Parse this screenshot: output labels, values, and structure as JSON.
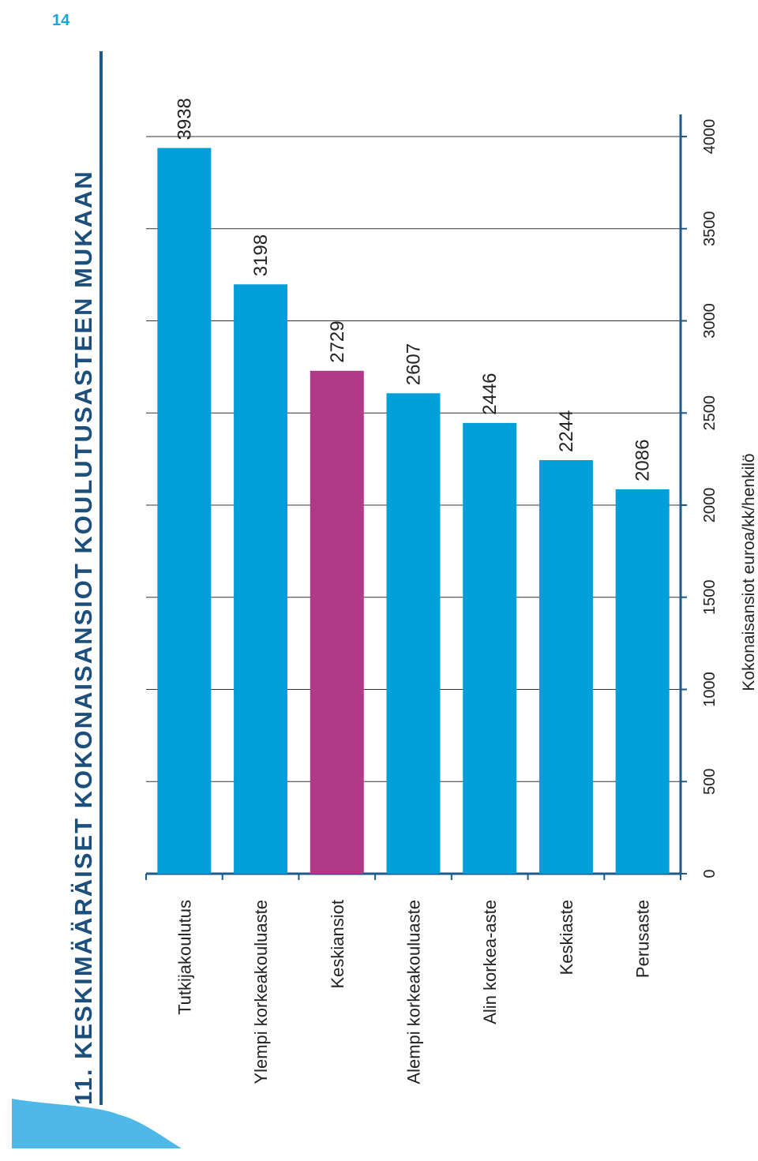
{
  "page_number": "14",
  "chart_data": {
    "type": "bar",
    "title": "11. KESKIMÄÄRÄISET KOKONAISANSIOT KOULUTUSASTEEN MUKAAN",
    "categories": [
      "Tutkijakoulutus",
      "Ylempi korkeakouluaste",
      "Keskiansiot",
      "Alempi korkeakouluaste",
      "Alin korkea-aste",
      "Keskiaste",
      "Perusaste"
    ],
    "values": [
      3938,
      3198,
      2729,
      2607,
      2446,
      2244,
      2086
    ],
    "colors": [
      "#009fda",
      "#009fda",
      "#b03a87",
      "#009fda",
      "#009fda",
      "#009fda",
      "#009fda"
    ],
    "ylabel": "Kokonaisansiot euroa/kk/henkilö",
    "ylim": [
      0,
      4000
    ],
    "yticks": [
      0,
      500,
      1000,
      1500,
      2000,
      2500,
      3000,
      3500,
      4000
    ],
    "grid": true
  }
}
